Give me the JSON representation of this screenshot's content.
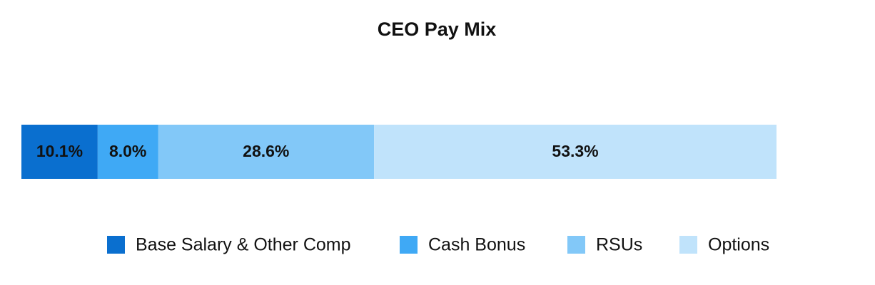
{
  "chart_data": {
    "type": "stacked-bar-horizontal",
    "title": "CEO Pay Mix",
    "xlim": [
      0,
      100
    ],
    "series": [
      {
        "name": "Base Salary & Other Comp",
        "color": "#0a6fcf",
        "values": [
          10.1
        ],
        "value_labels": [
          "10.1%"
        ]
      },
      {
        "name": "Cash Bonus",
        "color": "#3fa9f5",
        "values": [
          8.0
        ],
        "value_labels": [
          "8.0%"
        ]
      },
      {
        "name": "RSUs",
        "color": "#82c8f8",
        "values": [
          28.6
        ],
        "value_labels": [
          "28.6%"
        ]
      },
      {
        "name": "Options",
        "color": "#c0e3fb",
        "values": [
          53.3
        ],
        "value_labels": [
          "53.3%"
        ]
      }
    ],
    "legend": "bottom"
  }
}
